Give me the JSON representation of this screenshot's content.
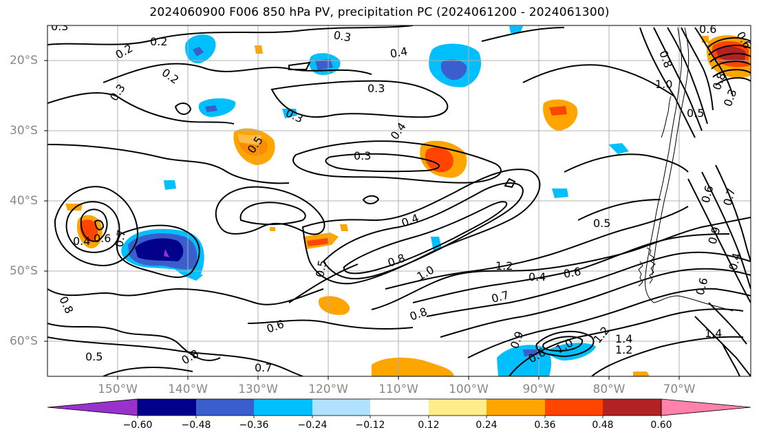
{
  "title": "2024060900 F006 850 hPa PV, precipitation PC (2024061200 - 2024061300)",
  "lon_ticks": [
    "150°W",
    "140°W",
    "130°W",
    "120°W",
    "110°W",
    "100°W",
    "90°W",
    "80°W",
    "70°W"
  ],
  "lat_ticks": [
    "20°S",
    "30°S",
    "40°S",
    "50°S",
    "60°S"
  ],
  "colorbar": {
    "tick_labels": [
      "−0.60",
      "−0.48",
      "−0.36",
      "−0.24",
      "−0.12",
      "0.12",
      "0.24",
      "0.36",
      "0.48",
      "0.60"
    ],
    "colors": [
      "#9932cc",
      "#00008b",
      "#3a5fcd",
      "#00bfff",
      "#b0e2ff",
      "#ffffff",
      "#ffec8b",
      "#ffa500",
      "#ff4500",
      "#b22222",
      "#ff82ab"
    ]
  },
  "contour_labels": [
    "0.3",
    "0.2",
    "0.2",
    "0.2",
    "0.3",
    "0.3",
    "0.4",
    "0.3",
    "0.3",
    "0.4",
    "0.5",
    "0.3",
    "0.6",
    "0.8",
    "1.0",
    "0.8",
    "0.3",
    "0.6",
    "0.5",
    "0.4",
    "0.6",
    "0.7",
    "0.8",
    "0.4",
    "0.5",
    "0.8",
    "1.0",
    "1.2",
    "0.4",
    "0.6",
    "0.7",
    "0.5",
    "0.6",
    "0.7",
    "0.9",
    "0.4",
    "0.6",
    "0.6",
    "0.5",
    "0.8",
    "0.7",
    "0.8",
    "0.9",
    "0.6",
    "1.0",
    "1.2",
    "1.4",
    "1.2",
    "1.4"
  ]
}
